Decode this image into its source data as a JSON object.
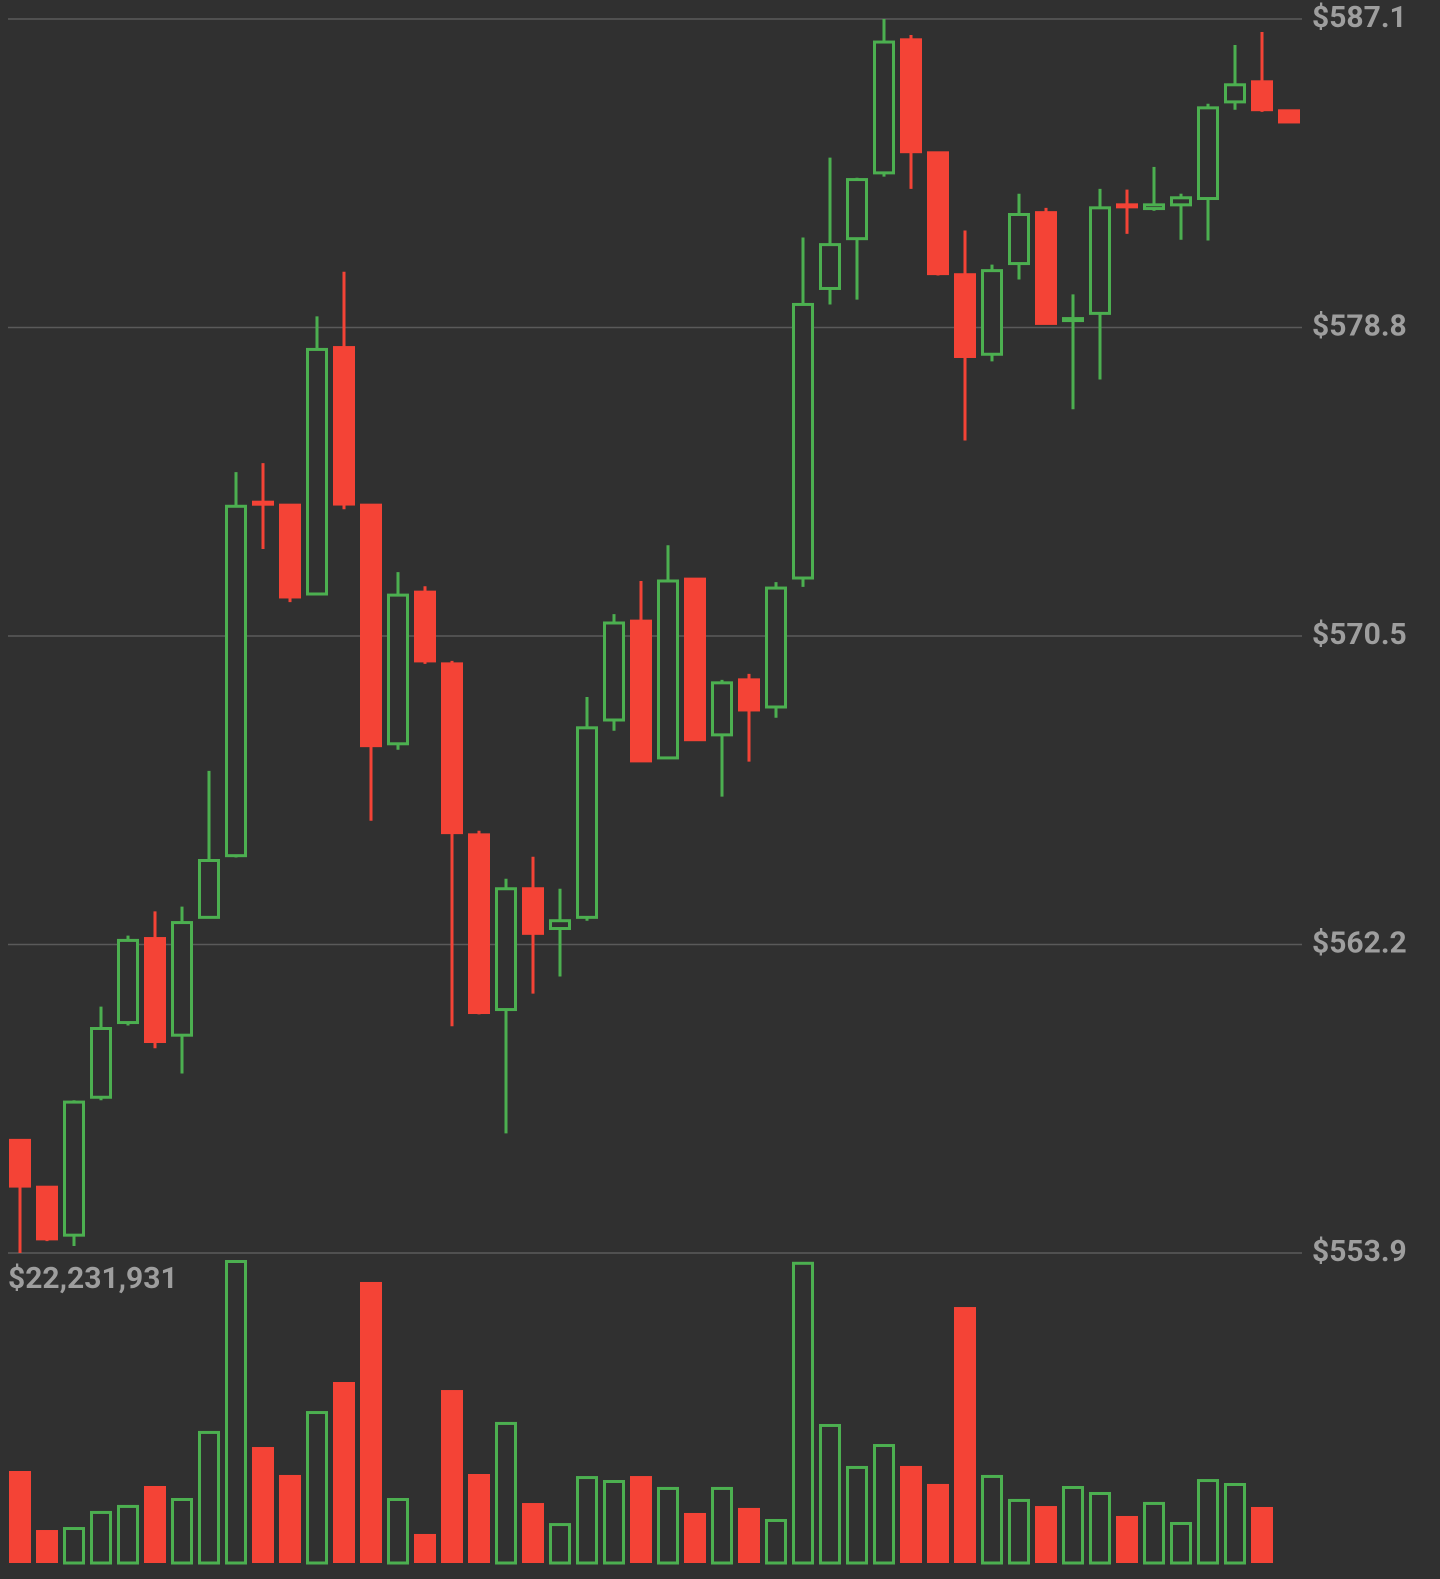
{
  "chart_data": {
    "type": "candlestick",
    "background": "#303030",
    "up_color": "#4caf50",
    "down_color": "#f44336",
    "grid": true,
    "ylim": [
      553.9,
      587.1
    ],
    "yticks": [
      {
        "value": 587.1,
        "label": "$587.1"
      },
      {
        "value": 578.8,
        "label": "$578.8"
      },
      {
        "value": 570.5,
        "label": "$570.5"
      },
      {
        "value": 562.2,
        "label": "$562.2"
      },
      {
        "value": 553.9,
        "label": "$553.9"
      }
    ],
    "y2lim": [
      0,
      22231931
    ],
    "y2ticks": [
      {
        "value": 22231931,
        "label": "$22,231,931"
      }
    ],
    "open": [
      556.93,
      555.67,
      554.38,
      558.09,
      560.1,
      562.36,
      559.76,
      562.93,
      564.59,
      574.1,
      574.02,
      571.63,
      578.26,
      574.02,
      567.6,
      571.68,
      569.75,
      565.15,
      560.45,
      563.7,
      562.63,
      562.93,
      568.24,
      570.9,
      567.22,
      572.03,
      567.84,
      569.32,
      568.59,
      572.06,
      579.85,
      581.19,
      582.96,
      586.54,
      583.5,
      580.22,
      578.08,
      580.52,
      581.89,
      578.99,
      579.18,
      582.1,
      582.0,
      582.1,
      582.27,
      584.87,
      585.41,
      584.63
    ],
    "high": [
      556.93,
      555.7,
      558.01,
      560.53,
      562.44,
      563.09,
      563.22,
      566.87,
      574.91,
      575.15,
      574.05,
      579.1,
      580.3,
      574.02,
      572.22,
      571.84,
      569.83,
      565.26,
      563.97,
      564.56,
      563.7,
      568.86,
      571.09,
      571.98,
      572.94,
      572.03,
      569.32,
      569.48,
      571.95,
      581.22,
      583.37,
      582.83,
      587.1,
      586.67,
      583.53,
      581.41,
      580.49,
      582.4,
      582.02,
      579.69,
      582.53,
      582.51,
      583.12,
      582.4,
      584.82,
      586.4,
      586.75,
      584.63
    ],
    "low": [
      553.9,
      554.22,
      554.09,
      558.01,
      560.02,
      559.41,
      558.73,
      562.9,
      564.54,
      572.84,
      571.41,
      571.6,
      573.91,
      565.53,
      567.44,
      569.75,
      560.0,
      560.32,
      557.12,
      560.88,
      561.34,
      562.84,
      567.95,
      567.14,
      567.2,
      567.71,
      566.18,
      567.12,
      568.3,
      571.82,
      579.42,
      579.55,
      582.86,
      582.53,
      580.2,
      575.76,
      577.89,
      580.09,
      578.91,
      576.6,
      577.4,
      581.32,
      581.94,
      581.16,
      581.14,
      584.66,
      584.6,
      584.33
    ],
    "close": [
      555.7,
      554.28,
      557.96,
      559.94,
      562.31,
      559.59,
      562.79,
      564.46,
      573.99,
      574.05,
      571.55,
      578.21,
      574.05,
      567.55,
      571.6,
      569.83,
      565.21,
      560.37,
      563.7,
      562.5,
      562.84,
      568.03,
      570.85,
      567.14,
      571.98,
      567.71,
      569.24,
      568.51,
      571.79,
      579.42,
      581.03,
      582.78,
      586.48,
      583.53,
      580.25,
      578.02,
      580.33,
      581.84,
      578.91,
      579.04,
      582.02,
      582.05,
      582.1,
      582.29,
      584.71,
      585.33,
      584.66,
      584.33
    ],
    "volume": [
      6750000,
      2420000,
      2640000,
      3820000,
      4260000,
      5650000,
      4770000,
      9690000,
      22231931,
      8510000,
      6460000,
      11150000,
      13280000,
      20620000,
      4770000,
      2130000,
      12690000,
      6530000,
      10350000,
      4400000,
      2930000,
      6380000,
      6090000,
      6380000,
      5580000,
      3670000,
      5580000,
      4040000,
      3230000,
      22100000,
      10200000,
      7120000,
      8730000,
      7120000,
      5800000,
      18780000,
      6460000,
      4700000,
      4180000,
      5650000,
      5210000,
      3450000,
      4480000,
      3010000,
      6160000,
      5870000,
      4110000,
      null
    ]
  }
}
